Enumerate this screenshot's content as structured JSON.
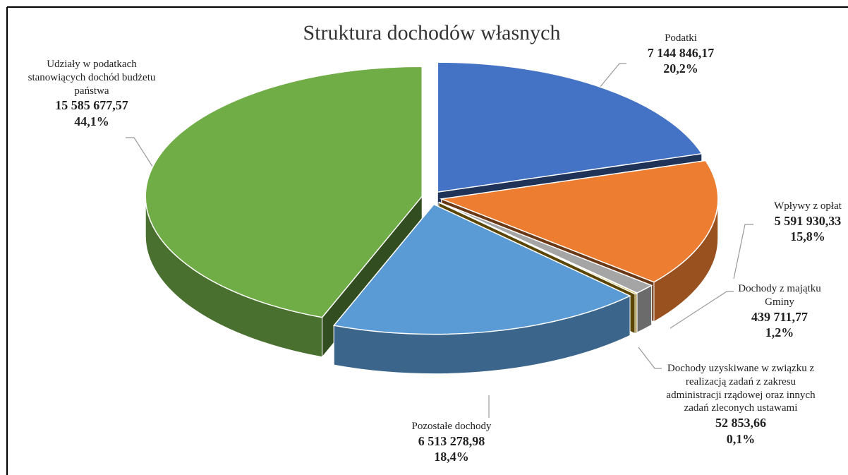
{
  "chart_data": {
    "type": "pie3d",
    "title": "Struktura dochodów własnych",
    "categories": [
      "Podatki",
      "Wpływy z opłat",
      "Dochody z majątku Gminy",
      "Dochody uzyskiwane w związku z realizacją zadań z zakresu administracji rządowej oraz innych zadań zleconych ustawami",
      "Pozostałe dochody",
      "Udziały w podatkach stanowiących dochód budżetu państwa"
    ],
    "values": [
      7144846.17,
      5591930.33,
      439711.77,
      52853.66,
      6513278.98,
      15585677.57
    ],
    "value_labels": [
      "7 144 846,17",
      "5 591 930,33",
      "439 711,77",
      "52 853,66",
      "6 513 278,98",
      "15 585 677,57"
    ],
    "percents": [
      20.2,
      15.8,
      1.2,
      0.1,
      18.4,
      44.1
    ],
    "percent_labels": [
      "20,2%",
      "15,8%",
      "1,2%",
      "0,1%",
      "18,4%",
      "44,1%"
    ],
    "colors": [
      "#4472c4",
      "#ed7d31",
      "#a5a5a5",
      "#c99a06",
      "#5b9bd5",
      "#70ad47"
    ]
  }
}
